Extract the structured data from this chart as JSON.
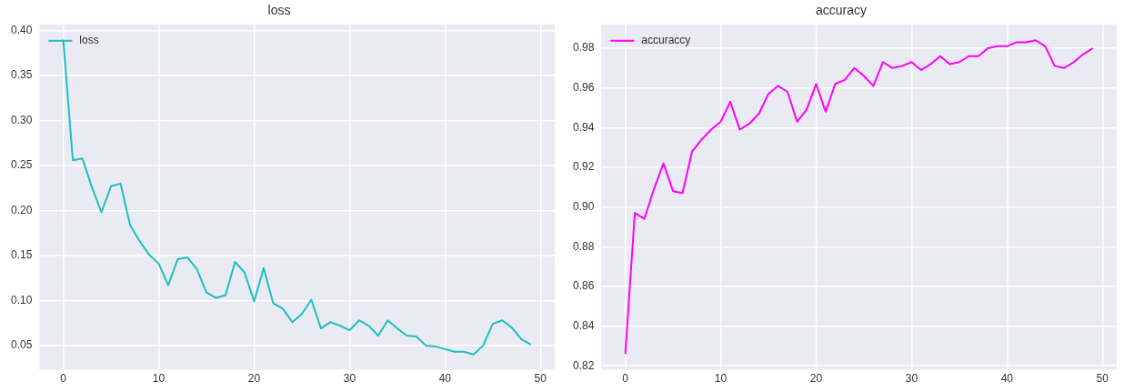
{
  "chart_data": [
    {
      "type": "line",
      "title": "loss",
      "x": [
        0,
        1,
        2,
        3,
        4,
        5,
        6,
        7,
        8,
        9,
        10,
        11,
        12,
        13,
        14,
        15,
        16,
        17,
        18,
        19,
        20,
        21,
        22,
        23,
        24,
        25,
        26,
        27,
        28,
        29,
        30,
        31,
        32,
        33,
        34,
        35,
        36,
        37,
        38,
        39,
        40,
        41,
        42,
        43,
        44,
        45,
        46,
        47,
        48,
        49
      ],
      "series": [
        {
          "name": "loss",
          "color": "#1fbfc0",
          "values": [
            0.39,
            0.256,
            0.258,
            0.226,
            0.198,
            0.227,
            0.23,
            0.184,
            0.166,
            0.151,
            0.141,
            0.117,
            0.146,
            0.148,
            0.135,
            0.109,
            0.103,
            0.106,
            0.143,
            0.131,
            0.099,
            0.136,
            0.097,
            0.091,
            0.076,
            0.085,
            0.101,
            0.069,
            0.076,
            0.072,
            0.067,
            0.078,
            0.072,
            0.061,
            0.078,
            0.069,
            0.061,
            0.06,
            0.05,
            0.049,
            0.046,
            0.043,
            0.043,
            0.04,
            0.05,
            0.074,
            0.078,
            0.07,
            0.057,
            0.051
          ]
        }
      ],
      "xlim": [
        -2.5,
        51.5
      ],
      "xticks": [
        0,
        10,
        20,
        30,
        40,
        50
      ],
      "ylim": [
        0.023,
        0.407
      ],
      "yticks": [
        {
          "value": 0.05,
          "label": "0.05"
        },
        {
          "value": 0.1,
          "label": "0.10"
        },
        {
          "value": 0.15,
          "label": "0.15"
        },
        {
          "value": 0.2,
          "label": "0.20"
        },
        {
          "value": 0.25,
          "label": "0.25"
        },
        {
          "value": 0.3,
          "label": "0.30"
        },
        {
          "value": 0.35,
          "label": "0.35"
        },
        {
          "value": 0.4,
          "label": "0.40"
        }
      ],
      "grid": true,
      "legend": "top left",
      "marker": "none",
      "line_style": "solid"
    },
    {
      "type": "line",
      "title": "accuracy",
      "x": [
        0,
        1,
        2,
        3,
        4,
        5,
        6,
        7,
        8,
        9,
        10,
        11,
        12,
        13,
        14,
        15,
        16,
        17,
        18,
        19,
        20,
        21,
        22,
        23,
        24,
        25,
        26,
        27,
        28,
        29,
        30,
        31,
        32,
        33,
        34,
        35,
        36,
        37,
        38,
        39,
        40,
        41,
        42,
        43,
        44,
        45,
        46,
        47,
        48,
        49
      ],
      "series": [
        {
          "name": "accuraccy",
          "color": "#ff00ff",
          "values": [
            0.826,
            0.897,
            0.894,
            0.909,
            0.922,
            0.908,
            0.907,
            0.928,
            0.934,
            0.939,
            0.943,
            0.953,
            0.939,
            0.942,
            0.947,
            0.957,
            0.961,
            0.958,
            0.943,
            0.949,
            0.962,
            0.948,
            0.962,
            0.964,
            0.97,
            0.966,
            0.961,
            0.973,
            0.97,
            0.971,
            0.973,
            0.969,
            0.972,
            0.976,
            0.972,
            0.973,
            0.976,
            0.976,
            0.98,
            0.981,
            0.981,
            0.983,
            0.983,
            0.984,
            0.981,
            0.971,
            0.97,
            0.973,
            0.977,
            0.98
          ]
        }
      ],
      "xlim": [
        -2.5,
        51.5
      ],
      "xticks": [
        0,
        10,
        20,
        30,
        40,
        50
      ],
      "ylim": [
        0.818,
        0.992
      ],
      "yticks": [
        {
          "value": 0.82,
          "label": "0.82"
        },
        {
          "value": 0.84,
          "label": "0.84"
        },
        {
          "value": 0.86,
          "label": "0.86"
        },
        {
          "value": 0.88,
          "label": "0.88"
        },
        {
          "value": 0.9,
          "label": "0.90"
        },
        {
          "value": 0.92,
          "label": "0.92"
        },
        {
          "value": 0.94,
          "label": "0.94"
        },
        {
          "value": 0.96,
          "label": "0.96"
        },
        {
          "value": 0.98,
          "label": "0.98"
        }
      ],
      "grid": true,
      "legend": "top left",
      "marker": "none",
      "line_style": "solid"
    }
  ]
}
